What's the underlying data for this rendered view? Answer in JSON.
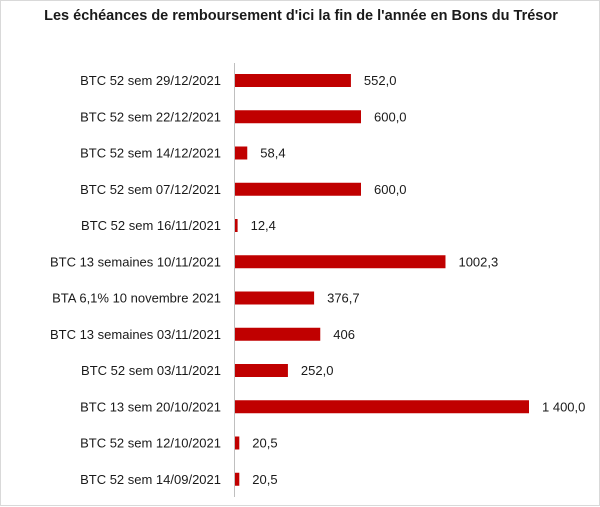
{
  "chart_data": {
    "type": "bar",
    "orientation": "horizontal",
    "title": "Les échéances de remboursement d'ici la fin de l'année en Bons du Trésor",
    "bar_color": "#c00000",
    "categories": [
      "BTC 52 sem 29/12/2021",
      "BTC 52 sem 22/12/2021",
      "BTC 52 sem 14/12/2021",
      "BTC 52 sem 07/12/2021",
      "BTC 52 sem 16/11/2021",
      "BTC 13 semaines 10/11/2021",
      "BTA 6,1% 10 novembre 2021",
      "BTC 13 semaines 03/11/2021",
      "BTC 52 sem 03/11/2021",
      "BTC 13 sem 20/10/2021",
      "BTC 52 sem 12/10/2021",
      "BTC 52 sem 14/09/2021"
    ],
    "values": [
      552.0,
      600.0,
      58.4,
      600.0,
      12.4,
      1002.3,
      376.7,
      406,
      252.0,
      1400.0,
      20.5,
      20.5
    ],
    "value_labels": [
      "552,0",
      "600,0",
      "58,4",
      "600,0",
      "12,4",
      "1002,3",
      "376,7",
      "406",
      "252,0",
      "1 400,0",
      "20,5",
      "20,5"
    ],
    "xlim": [
      0,
      1400
    ],
    "grid": false,
    "legend": "none"
  }
}
